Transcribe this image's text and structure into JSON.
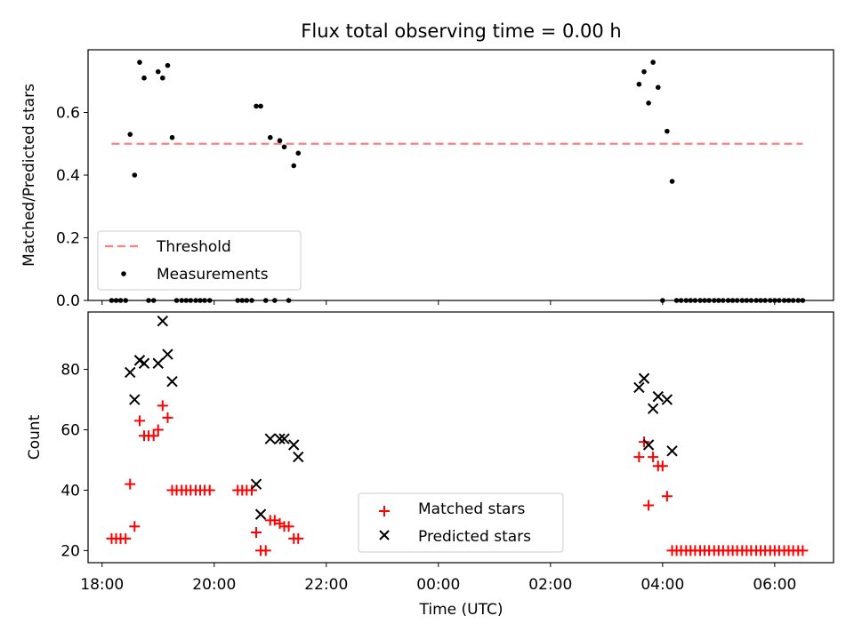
{
  "chart_data": {
    "type": "scatter",
    "title": "Flux total observing time = 0.00 h",
    "xlabel": "Time (UTC)",
    "x_ticks": [
      "18:00",
      "20:00",
      "22:00",
      "00:00",
      "02:00",
      "04:00",
      "06:00"
    ],
    "xlim": [
      -0.25,
      13.05
    ],
    "panels": [
      {
        "id": "ratio",
        "ylabel": "Matched/Predicted stars",
        "ylim": [
          0,
          0.8
        ],
        "y_ticks": [
          "0.0",
          "0.2",
          "0.4",
          "0.6"
        ],
        "grid": false,
        "legend_position": "lower-left",
        "series": [
          {
            "name": "Threshold",
            "kind": "dashed-line",
            "color": "#ff7f7f",
            "points": [
              [
                0.17,
                0.5
              ],
              [
                12.5,
                0.5
              ]
            ]
          },
          {
            "name": "Measurements",
            "kind": "dot",
            "color": "#000000",
            "points": [
              [
                0.17,
                0
              ],
              [
                0.25,
                0
              ],
              [
                0.33,
                0
              ],
              [
                0.42,
                0
              ],
              [
                0.5,
                0.53
              ],
              [
                0.58,
                0.4
              ],
              [
                0.67,
                0.76
              ],
              [
                0.75,
                0.71
              ],
              [
                0.83,
                0
              ],
              [
                0.92,
                0
              ],
              [
                1.0,
                0.73
              ],
              [
                1.08,
                0.71
              ],
              [
                1.17,
                0.75
              ],
              [
                1.25,
                0.52
              ],
              [
                1.33,
                0
              ],
              [
                1.42,
                0
              ],
              [
                1.5,
                0
              ],
              [
                1.58,
                0
              ],
              [
                1.67,
                0
              ],
              [
                1.75,
                0
              ],
              [
                1.83,
                0
              ],
              [
                1.92,
                0
              ],
              [
                2.42,
                0
              ],
              [
                2.5,
                0
              ],
              [
                2.58,
                0
              ],
              [
                2.67,
                0
              ],
              [
                2.75,
                0.62
              ],
              [
                2.83,
                0.62
              ],
              [
                2.92,
                0
              ],
              [
                3.0,
                0.52
              ],
              [
                3.08,
                0
              ],
              [
                3.17,
                0.51
              ],
              [
                3.25,
                0.49
              ],
              [
                3.33,
                0
              ],
              [
                3.42,
                0.43
              ],
              [
                3.5,
                0.47
              ],
              [
                9.58,
                0.69
              ],
              [
                9.67,
                0.73
              ],
              [
                9.75,
                0.63
              ],
              [
                9.83,
                0.76
              ],
              [
                9.92,
                0.68
              ],
              [
                10.0,
                0
              ],
              [
                10.08,
                0.54
              ],
              [
                10.17,
                0.38
              ],
              [
                10.25,
                0
              ],
              [
                10.33,
                0
              ],
              [
                10.42,
                0
              ],
              [
                10.5,
                0
              ],
              [
                10.58,
                0
              ],
              [
                10.67,
                0
              ],
              [
                10.75,
                0
              ],
              [
                10.83,
                0
              ],
              [
                10.92,
                0
              ],
              [
                11.0,
                0
              ],
              [
                11.08,
                0
              ],
              [
                11.17,
                0
              ],
              [
                11.25,
                0
              ],
              [
                11.33,
                0
              ],
              [
                11.42,
                0
              ],
              [
                11.5,
                0
              ],
              [
                11.58,
                0
              ],
              [
                11.67,
                0
              ],
              [
                11.75,
                0
              ],
              [
                11.83,
                0
              ],
              [
                11.92,
                0
              ],
              [
                12.0,
                0
              ],
              [
                12.08,
                0
              ],
              [
                12.17,
                0
              ],
              [
                12.25,
                0
              ],
              [
                12.33,
                0
              ],
              [
                12.42,
                0
              ],
              [
                12.5,
                0
              ]
            ]
          }
        ]
      },
      {
        "id": "count",
        "ylabel": "Count",
        "ylim": [
          16,
          99
        ],
        "y_ticks": [
          "20",
          "40",
          "60",
          "80"
        ],
        "grid": false,
        "legend_position": "bottom-center",
        "series": [
          {
            "name": "Matched stars",
            "kind": "plus",
            "color": "#ff0000",
            "points": [
              [
                0.17,
                24
              ],
              [
                0.25,
                24
              ],
              [
                0.33,
                24
              ],
              [
                0.42,
                24
              ],
              [
                0.5,
                42
              ],
              [
                0.58,
                28
              ],
              [
                0.67,
                63
              ],
              [
                0.75,
                58
              ],
              [
                0.83,
                58
              ],
              [
                0.92,
                58
              ],
              [
                1.0,
                60
              ],
              [
                1.08,
                68
              ],
              [
                1.17,
                64
              ],
              [
                1.25,
                40
              ],
              [
                1.33,
                40
              ],
              [
                1.42,
                40
              ],
              [
                1.5,
                40
              ],
              [
                1.58,
                40
              ],
              [
                1.67,
                40
              ],
              [
                1.75,
                40
              ],
              [
                1.83,
                40
              ],
              [
                1.92,
                40
              ],
              [
                2.42,
                40
              ],
              [
                2.5,
                40
              ],
              [
                2.58,
                40
              ],
              [
                2.67,
                40
              ],
              [
                2.75,
                26
              ],
              [
                2.83,
                20
              ],
              [
                2.92,
                20
              ],
              [
                3.0,
                30
              ],
              [
                3.08,
                30
              ],
              [
                3.17,
                29
              ],
              [
                3.25,
                28
              ],
              [
                3.33,
                28
              ],
              [
                3.42,
                24
              ],
              [
                3.5,
                24
              ],
              [
                9.58,
                51
              ],
              [
                9.67,
                56
              ],
              [
                9.75,
                35
              ],
              [
                9.83,
                51
              ],
              [
                9.92,
                48
              ],
              [
                10.0,
                48
              ],
              [
                10.08,
                38
              ],
              [
                10.17,
                20
              ],
              [
                10.25,
                20
              ],
              [
                10.33,
                20
              ],
              [
                10.42,
                20
              ],
              [
                10.5,
                20
              ],
              [
                10.58,
                20
              ],
              [
                10.67,
                20
              ],
              [
                10.75,
                20
              ],
              [
                10.83,
                20
              ],
              [
                10.92,
                20
              ],
              [
                11.0,
                20
              ],
              [
                11.08,
                20
              ],
              [
                11.17,
                20
              ],
              [
                11.25,
                20
              ],
              [
                11.33,
                20
              ],
              [
                11.42,
                20
              ],
              [
                11.5,
                20
              ],
              [
                11.58,
                20
              ],
              [
                11.67,
                20
              ],
              [
                11.75,
                20
              ],
              [
                11.83,
                20
              ],
              [
                11.92,
                20
              ],
              [
                12.0,
                20
              ],
              [
                12.08,
                20
              ],
              [
                12.17,
                20
              ],
              [
                12.25,
                20
              ],
              [
                12.33,
                20
              ],
              [
                12.42,
                20
              ],
              [
                12.5,
                20
              ]
            ]
          },
          {
            "name": "Predicted stars",
            "kind": "cross",
            "color": "#000000",
            "points": [
              [
                0.5,
                79
              ],
              [
                0.58,
                70
              ],
              [
                0.67,
                83
              ],
              [
                0.75,
                82
              ],
              [
                1.0,
                82
              ],
              [
                1.08,
                96
              ],
              [
                1.17,
                85
              ],
              [
                1.25,
                76
              ],
              [
                2.75,
                42
              ],
              [
                2.83,
                32
              ],
              [
                3.0,
                57
              ],
              [
                3.17,
                57
              ],
              [
                3.25,
                57
              ],
              [
                3.42,
                55
              ],
              [
                3.5,
                51
              ],
              [
                9.58,
                74
              ],
              [
                9.67,
                77
              ],
              [
                9.75,
                55
              ],
              [
                9.83,
                67
              ],
              [
                9.92,
                71
              ],
              [
                10.08,
                70
              ],
              [
                10.17,
                53
              ]
            ]
          }
        ]
      }
    ]
  }
}
